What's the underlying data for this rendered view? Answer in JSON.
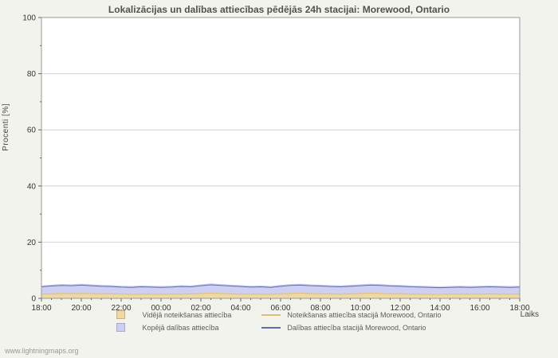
{
  "title": "Lokalizācijas un dalības attiecības pēdējās 24h stacijai: Morewood, Ontario",
  "watermark": "www.lightningmaps.org",
  "chart_data": {
    "type": "area",
    "title": "Lokalizācijas un dalības attiecības pēdējās 24h stacijai: Morewood, Ontario",
    "xlabel": "Laiks",
    "ylabel": "Procenti  [%]",
    "ylim": [
      0,
      100
    ],
    "y_ticks": [
      0,
      20,
      40,
      60,
      80,
      100
    ],
    "x_ticks": [
      "18:00",
      "20:00",
      "22:00",
      "00:00",
      "02:00",
      "04:00",
      "06:00",
      "08:00",
      "10:00",
      "12:00",
      "14:00",
      "16:00",
      "18:00"
    ],
    "points_per_series": 49,
    "grid": "horizontal",
    "legend_position": "bottom",
    "plot_background": "#ffffff",
    "background": "#f3f3ee",
    "grid_color": "#d4d4d4",
    "axis_color": "#9a9a9a",
    "tick_color": "#666666",
    "series": [
      {
        "name": "Kopējā dalības attiecība",
        "type": "area",
        "color": "#cfcff2",
        "values": [
          4.6,
          4.9,
          5.1,
          5.0,
          5.2,
          5.0,
          4.8,
          4.7,
          4.5,
          4.4,
          4.6,
          4.5,
          4.4,
          4.5,
          4.7,
          4.6,
          5.0,
          5.3,
          5.1,
          4.9,
          4.7,
          4.5,
          4.6,
          4.4,
          4.8,
          5.1,
          5.2,
          5.0,
          4.9,
          4.7,
          4.6,
          4.8,
          5.0,
          5.2,
          5.1,
          4.9,
          4.8,
          4.6,
          4.5,
          4.4,
          4.3,
          4.4,
          4.5,
          4.4,
          4.5,
          4.6,
          4.5,
          4.4,
          4.5
        ]
      },
      {
        "name": "Vidējā noteikšanas attiecība",
        "type": "area",
        "color": "#eed9a4",
        "values": [
          1.7,
          1.8,
          1.9,
          1.8,
          1.9,
          1.8,
          1.8,
          1.7,
          1.6,
          1.6,
          1.7,
          1.6,
          1.6,
          1.6,
          1.7,
          1.7,
          1.8,
          1.9,
          1.9,
          1.8,
          1.7,
          1.6,
          1.7,
          1.6,
          1.8,
          1.9,
          1.9,
          1.8,
          1.8,
          1.7,
          1.7,
          1.8,
          1.8,
          1.9,
          1.9,
          1.8,
          1.8,
          1.7,
          1.6,
          1.6,
          1.6,
          1.6,
          1.7,
          1.6,
          1.7,
          1.7,
          1.7,
          1.6,
          1.6
        ]
      },
      {
        "name": "Dalības attiecība stacijā Morewood, Ontario",
        "type": "line",
        "color": "#5f6cae",
        "values": [
          4.1,
          4.4,
          4.6,
          4.5,
          4.7,
          4.5,
          4.3,
          4.2,
          4.0,
          3.9,
          4.1,
          4.0,
          3.9,
          4.0,
          4.2,
          4.1,
          4.5,
          4.8,
          4.6,
          4.4,
          4.2,
          4.0,
          4.1,
          3.9,
          4.3,
          4.6,
          4.7,
          4.5,
          4.4,
          4.2,
          4.1,
          4.3,
          4.5,
          4.7,
          4.6,
          4.4,
          4.3,
          4.1,
          4.0,
          3.9,
          3.8,
          3.9,
          4.0,
          3.9,
          4.0,
          4.1,
          4.0,
          3.9,
          4.0
        ]
      },
      {
        "name": "Noteikšanas attiecība stacijā Morewood, Ontario",
        "type": "line",
        "color": "#dfbd76",
        "values": [
          1.5,
          1.6,
          1.7,
          1.7,
          1.7,
          1.7,
          1.6,
          1.6,
          1.5,
          1.4,
          1.5,
          1.5,
          1.4,
          1.5,
          1.5,
          1.6,
          1.7,
          1.8,
          1.7,
          1.6,
          1.5,
          1.5,
          1.5,
          1.4,
          1.6,
          1.7,
          1.8,
          1.7,
          1.6,
          1.6,
          1.5,
          1.6,
          1.7,
          1.8,
          1.7,
          1.6,
          1.6,
          1.5,
          1.5,
          1.4,
          1.4,
          1.5,
          1.5,
          1.5,
          1.5,
          1.6,
          1.5,
          1.5,
          1.5
        ]
      }
    ]
  },
  "legend": {
    "items": [
      {
        "label": "Vidējā noteikšanas attiecība",
        "swatch": "square",
        "color": "#eed9a4"
      },
      {
        "label": "Noteikšanas attiecība stacijā Morewood, Ontario",
        "swatch": "line",
        "color": "#dfbd76"
      },
      {
        "label": "Kopējā dalības attiecība",
        "swatch": "square",
        "color": "#cfcff2"
      },
      {
        "label": "Dalības attiecība stacijā Morewood, Ontario",
        "swatch": "line",
        "color": "#5f6cae"
      }
    ]
  }
}
